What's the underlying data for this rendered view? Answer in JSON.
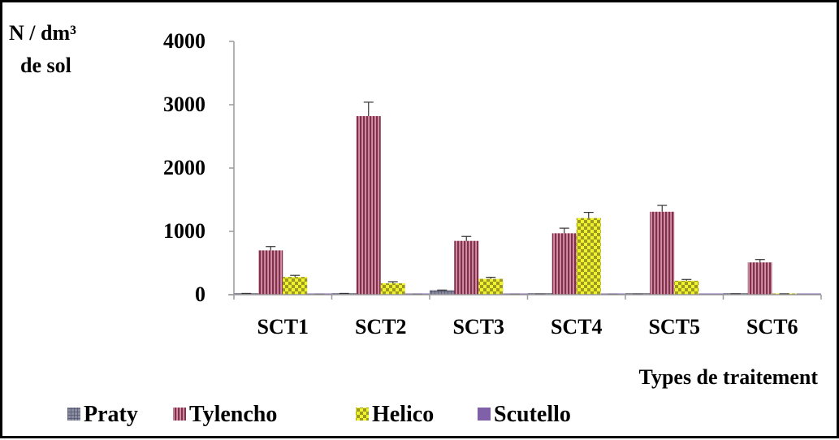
{
  "chart_data": {
    "type": "bar",
    "ylabel_line1": "N /  dm³",
    "ylabel_line2": "de sol",
    "xlabel": "Types de traitement",
    "categories": [
      "SCT1",
      "SCT2",
      "SCT3",
      "SCT4",
      "SCT5",
      "SCT6"
    ],
    "ylim": [
      0,
      4000
    ],
    "yticks": [
      0,
      1000,
      2000,
      3000,
      4000
    ],
    "grid": false,
    "legend_position": "bottom",
    "series": [
      {
        "name": "Praty",
        "values": [
          15,
          15,
          65,
          5,
          5,
          10
        ],
        "errors": [
          5,
          5,
          8,
          3,
          3,
          4
        ],
        "color": "#6b6e86",
        "pattern": "grid"
      },
      {
        "name": "Tylencho",
        "values": [
          700,
          2820,
          850,
          970,
          1310,
          510
        ],
        "errors": [
          60,
          220,
          70,
          80,
          100,
          45
        ],
        "color": "#8c2c4c",
        "pattern": "vstripe"
      },
      {
        "name": "Helico",
        "values": [
          280,
          180,
          250,
          1210,
          220,
          10
        ],
        "errors": [
          25,
          25,
          25,
          90,
          20,
          4
        ],
        "color": "#f0f020",
        "pattern": "checker"
      },
      {
        "name": "Scutello",
        "values": [
          5,
          5,
          5,
          5,
          0,
          0
        ],
        "errors": [
          2,
          2,
          2,
          2,
          0,
          0
        ],
        "color": "#8060a8",
        "pattern": "solid"
      }
    ]
  }
}
